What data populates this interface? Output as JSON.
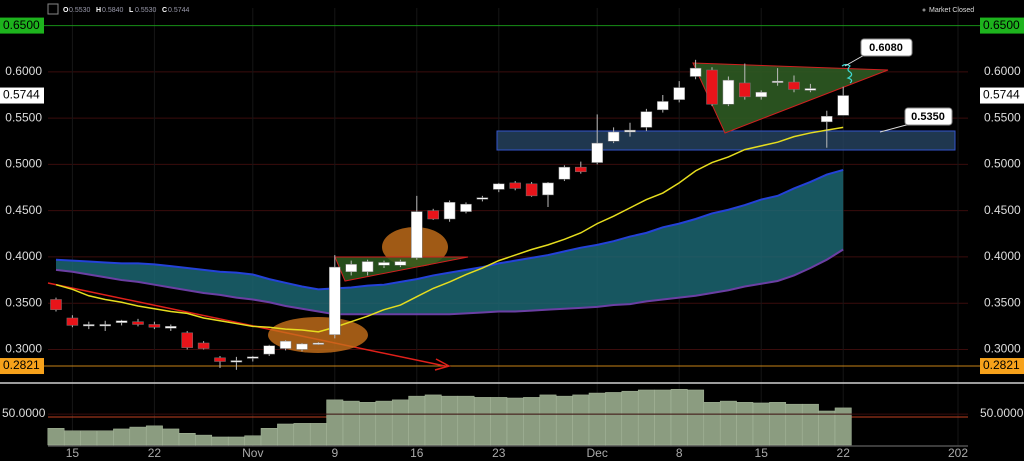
{
  "chart_data": {
    "type": "candlestick",
    "status": "Market Closed",
    "ohlc_legend": [
      {
        "letter": "O",
        "value": "0.5530"
      },
      {
        "letter": "H",
        "value": "0.5840"
      },
      {
        "letter": "L",
        "value": "0.5530"
      },
      {
        "letter": "C",
        "value": "0.5744"
      }
    ],
    "categories": [
      null,
      "15",
      null,
      null,
      null,
      null,
      "22",
      null,
      null,
      null,
      null,
      null,
      "Nov",
      null,
      null,
      null,
      null,
      "9",
      null,
      null,
      null,
      null,
      "16",
      null,
      null,
      null,
      null,
      "23",
      null,
      null,
      null,
      null,
      null,
      "Dec",
      null,
      null,
      null,
      null,
      "8",
      null,
      null,
      null,
      null,
      "15",
      null,
      null,
      null,
      null,
      "22",
      null,
      null,
      null,
      null,
      null,
      null,
      "202"
    ],
    "open": [
      0.354,
      0.334,
      0.326,
      0.327,
      0.329,
      0.33,
      0.327,
      0.323,
      0.318,
      0.307,
      0.291,
      0.288,
      0.291,
      0.295,
      0.301,
      0.3,
      0.306,
      0.316,
      0.384,
      0.384,
      0.391,
      0.391,
      0.399,
      0.45,
      0.441,
      0.449,
      0.463,
      0.473,
      0.48,
      0.479,
      0.467,
      0.484,
      0.497,
      0.502,
      0.525,
      0.535,
      0.54,
      0.559,
      0.57,
      0.595,
      0.602,
      0.565,
      0.588,
      0.573,
      0.589,
      0.589,
      0.58,
      0.546,
      0.553,
      null,
      null,
      null,
      null,
      null,
      null,
      null
    ],
    "high": [
      0.356,
      0.337,
      0.33,
      0.331,
      0.332,
      0.333,
      0.33,
      0.327,
      0.32,
      0.309,
      0.293,
      0.292,
      0.293,
      0.305,
      0.31,
      0.307,
      0.308,
      0.402,
      0.396,
      0.397,
      0.396,
      0.397,
      0.466,
      0.452,
      0.461,
      0.459,
      0.466,
      0.48,
      0.482,
      0.481,
      0.481,
      0.499,
      0.503,
      0.554,
      0.54,
      0.545,
      0.56,
      0.575,
      0.59,
      0.613,
      0.605,
      0.595,
      0.609,
      0.58,
      0.604,
      0.596,
      0.587,
      0.558,
      0.584,
      null,
      null,
      null,
      null,
      null,
      null,
      null
    ],
    "low": [
      0.341,
      0.324,
      0.322,
      0.32,
      0.326,
      0.325,
      0.322,
      0.32,
      0.3,
      0.3,
      0.28,
      0.278,
      0.287,
      0.293,
      0.299,
      0.298,
      0.305,
      0.312,
      0.38,
      0.38,
      0.388,
      0.389,
      0.397,
      0.44,
      0.438,
      0.447,
      0.46,
      0.47,
      0.472,
      0.465,
      0.454,
      0.482,
      0.49,
      0.5,
      0.523,
      0.53,
      0.536,
      0.556,
      0.567,
      0.592,
      0.563,
      0.563,
      0.57,
      0.57,
      0.585,
      0.578,
      0.578,
      0.518,
      0.553,
      null,
      null,
      null,
      null,
      null,
      null,
      null
    ],
    "close": [
      0.343,
      0.326,
      0.327,
      0.327,
      0.331,
      0.327,
      0.324,
      0.325,
      0.302,
      0.301,
      0.287,
      0.288,
      0.292,
      0.304,
      0.309,
      0.306,
      0.307,
      0.389,
      0.392,
      0.395,
      0.394,
      0.395,
      0.449,
      0.441,
      0.459,
      0.457,
      0.464,
      0.479,
      0.474,
      0.466,
      0.48,
      0.497,
      0.492,
      0.523,
      0.535,
      0.537,
      0.557,
      0.568,
      0.583,
      0.604,
      0.565,
      0.591,
      0.573,
      0.578,
      0.59,
      0.581,
      0.582,
      0.552,
      0.5744,
      null,
      null,
      null,
      null,
      null,
      null,
      null
    ],
    "up_color": "#ffffff",
    "down_color": "#e8141a",
    "ma": {
      "color": "#e6dd1e",
      "values": [
        0.37,
        0.365,
        0.358,
        0.354,
        0.351,
        0.347,
        0.344,
        0.341,
        0.339,
        0.334,
        0.331,
        0.328,
        0.325,
        0.324,
        0.322,
        0.321,
        0.319,
        0.324,
        0.33,
        0.336,
        0.343,
        0.348,
        0.357,
        0.366,
        0.373,
        0.381,
        0.388,
        0.396,
        0.402,
        0.408,
        0.413,
        0.419,
        0.426,
        0.436,
        0.444,
        0.453,
        0.462,
        0.469,
        0.48,
        0.493,
        0.502,
        0.508,
        0.516,
        0.52,
        0.524,
        0.53,
        0.534,
        0.537,
        0.54,
        null,
        null,
        null,
        null,
        null,
        null,
        null
      ]
    },
    "band": {
      "upper_color": "#2442d8",
      "lower_color": "#6b3fa3",
      "fill": "#1d6b78",
      "upper": [
        0.397,
        0.396,
        0.395,
        0.394,
        0.393,
        0.393,
        0.392,
        0.39,
        0.388,
        0.386,
        0.384,
        0.383,
        0.381,
        0.376,
        0.372,
        0.368,
        0.365,
        0.366,
        0.367,
        0.369,
        0.37,
        0.373,
        0.376,
        0.38,
        0.383,
        0.386,
        0.389,
        0.393,
        0.396,
        0.399,
        0.402,
        0.406,
        0.41,
        0.413,
        0.417,
        0.422,
        0.426,
        0.432,
        0.436,
        0.441,
        0.447,
        0.451,
        0.456,
        0.462,
        0.466,
        0.474,
        0.481,
        0.489,
        0.494,
        null,
        null,
        null,
        null,
        null,
        null,
        null
      ],
      "lower": [
        0.386,
        0.384,
        0.381,
        0.378,
        0.375,
        0.373,
        0.37,
        0.367,
        0.364,
        0.361,
        0.359,
        0.356,
        0.354,
        0.351,
        0.347,
        0.344,
        0.341,
        0.338,
        0.338,
        0.338,
        0.338,
        0.338,
        0.338,
        0.338,
        0.338,
        0.339,
        0.34,
        0.341,
        0.341,
        0.342,
        0.343,
        0.344,
        0.345,
        0.346,
        0.348,
        0.349,
        0.352,
        0.354,
        0.356,
        0.358,
        0.361,
        0.364,
        0.368,
        0.371,
        0.374,
        0.38,
        0.388,
        0.397,
        0.408,
        null,
        null,
        null,
        null,
        null,
        null,
        null
      ]
    },
    "ylim": [
      0.267,
      0.669
    ],
    "yticks": [
      {
        "value": 0.3,
        "label": "0.3000"
      },
      {
        "value": 0.35,
        "label": "0.3500"
      },
      {
        "value": 0.4,
        "label": "0.4000"
      },
      {
        "value": 0.45,
        "label": "0.4500"
      },
      {
        "value": 0.5,
        "label": "0.5000"
      },
      {
        "value": 0.55,
        "label": "0.5500"
      },
      {
        "value": 0.6,
        "label": "0.6000"
      }
    ],
    "grid": true,
    "price_lines": [
      {
        "value": 0.65,
        "label": "0.6500",
        "color": "#1db31d"
      },
      {
        "value": 0.5744,
        "label": "0.5744",
        "color": "#ffffff"
      },
      {
        "value": 0.2821,
        "label": "0.2821",
        "color": "#f7a21b"
      }
    ],
    "callouts": [
      "0.6080",
      "0.5350"
    ],
    "volume": {
      "color": "#8b9c80",
      "ylim": [
        0,
        97
      ],
      "yticks": [
        {
          "value": 50,
          "label": "50.0000"
        }
      ],
      "values": [
        27,
        23,
        23,
        23,
        26,
        29,
        31,
        26,
        19,
        16,
        13,
        13,
        15,
        27,
        34,
        35,
        35,
        73,
        71,
        69,
        71,
        73,
        79,
        81,
        79,
        79,
        77,
        77,
        76,
        77,
        81,
        79,
        81,
        84,
        85,
        87,
        89,
        89,
        90,
        89,
        69,
        71,
        69,
        68,
        69,
        66,
        66,
        55,
        60,
        null,
        null,
        null,
        null,
        null,
        null,
        null
      ]
    }
  }
}
